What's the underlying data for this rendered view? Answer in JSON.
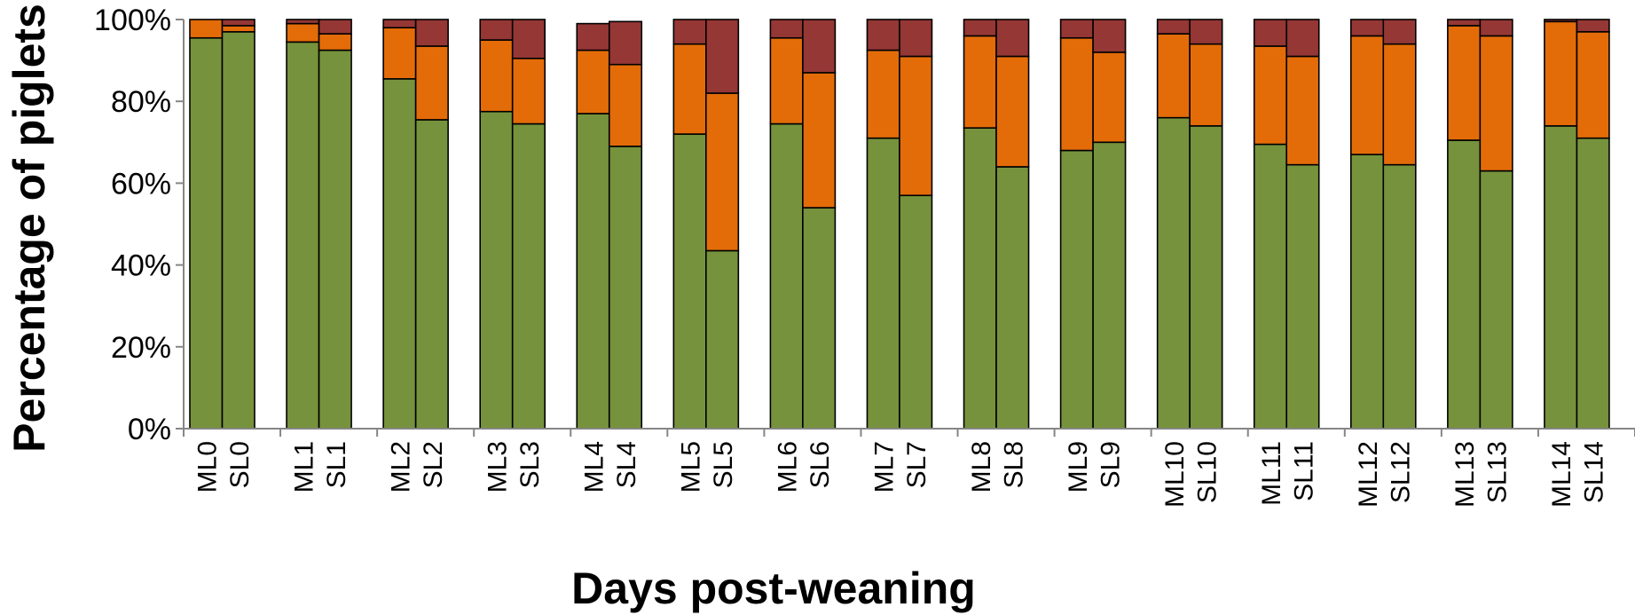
{
  "chart_data": {
    "type": "bar",
    "stacked": true,
    "percent": true,
    "xlabel": "Days post-weaning",
    "ylabel": "Percentage of piglets",
    "ylim": [
      0,
      100
    ],
    "yticks": [
      "0%",
      "20%",
      "40%",
      "60%",
      "80%",
      "100%"
    ],
    "legend": "none",
    "grid": false,
    "categories": [
      "ML0",
      "SL0",
      "ML1",
      "SL1",
      "ML2",
      "SL2",
      "ML3",
      "SL3",
      "ML4",
      "SL4",
      "ML5",
      "SL5",
      "ML6",
      "SL6",
      "ML7",
      "SL7",
      "ML8",
      "SL8",
      "ML9",
      "SL9",
      "ML10",
      "SL10",
      "ML11",
      "SL11",
      "ML12",
      "SL12",
      "ML13",
      "SL13",
      "ML14",
      "SL14"
    ],
    "series": [
      {
        "color": "#76923c",
        "values": [
          95.5,
          97,
          94.5,
          92.5,
          85.5,
          75.5,
          77.5,
          74.5,
          77,
          69,
          72,
          43.5,
          74.5,
          54,
          71,
          57,
          73.5,
          64,
          68,
          70,
          76,
          74,
          69.5,
          64.5,
          67,
          64.5,
          70.5,
          63,
          74,
          71
        ]
      },
      {
        "color": "#e36c09",
        "values": [
          4.5,
          1.5,
          4.5,
          4,
          12.5,
          18,
          17.5,
          16,
          15.5,
          20,
          22,
          38.5,
          21,
          33,
          21.5,
          34,
          22.5,
          27,
          27.5,
          22,
          20.5,
          20,
          24,
          26.5,
          29,
          29.5,
          28,
          33,
          25.5,
          26
        ]
      },
      {
        "color": "#953735",
        "values": [
          0,
          1.5,
          1,
          3.5,
          2,
          6.5,
          5,
          9.5,
          6.5,
          10.5,
          6,
          18,
          4.5,
          13,
          7.5,
          9,
          4,
          9,
          4.5,
          8,
          3.5,
          6,
          6.5,
          9,
          4,
          6,
          1.5,
          4,
          0.5,
          3
        ]
      }
    ]
  }
}
